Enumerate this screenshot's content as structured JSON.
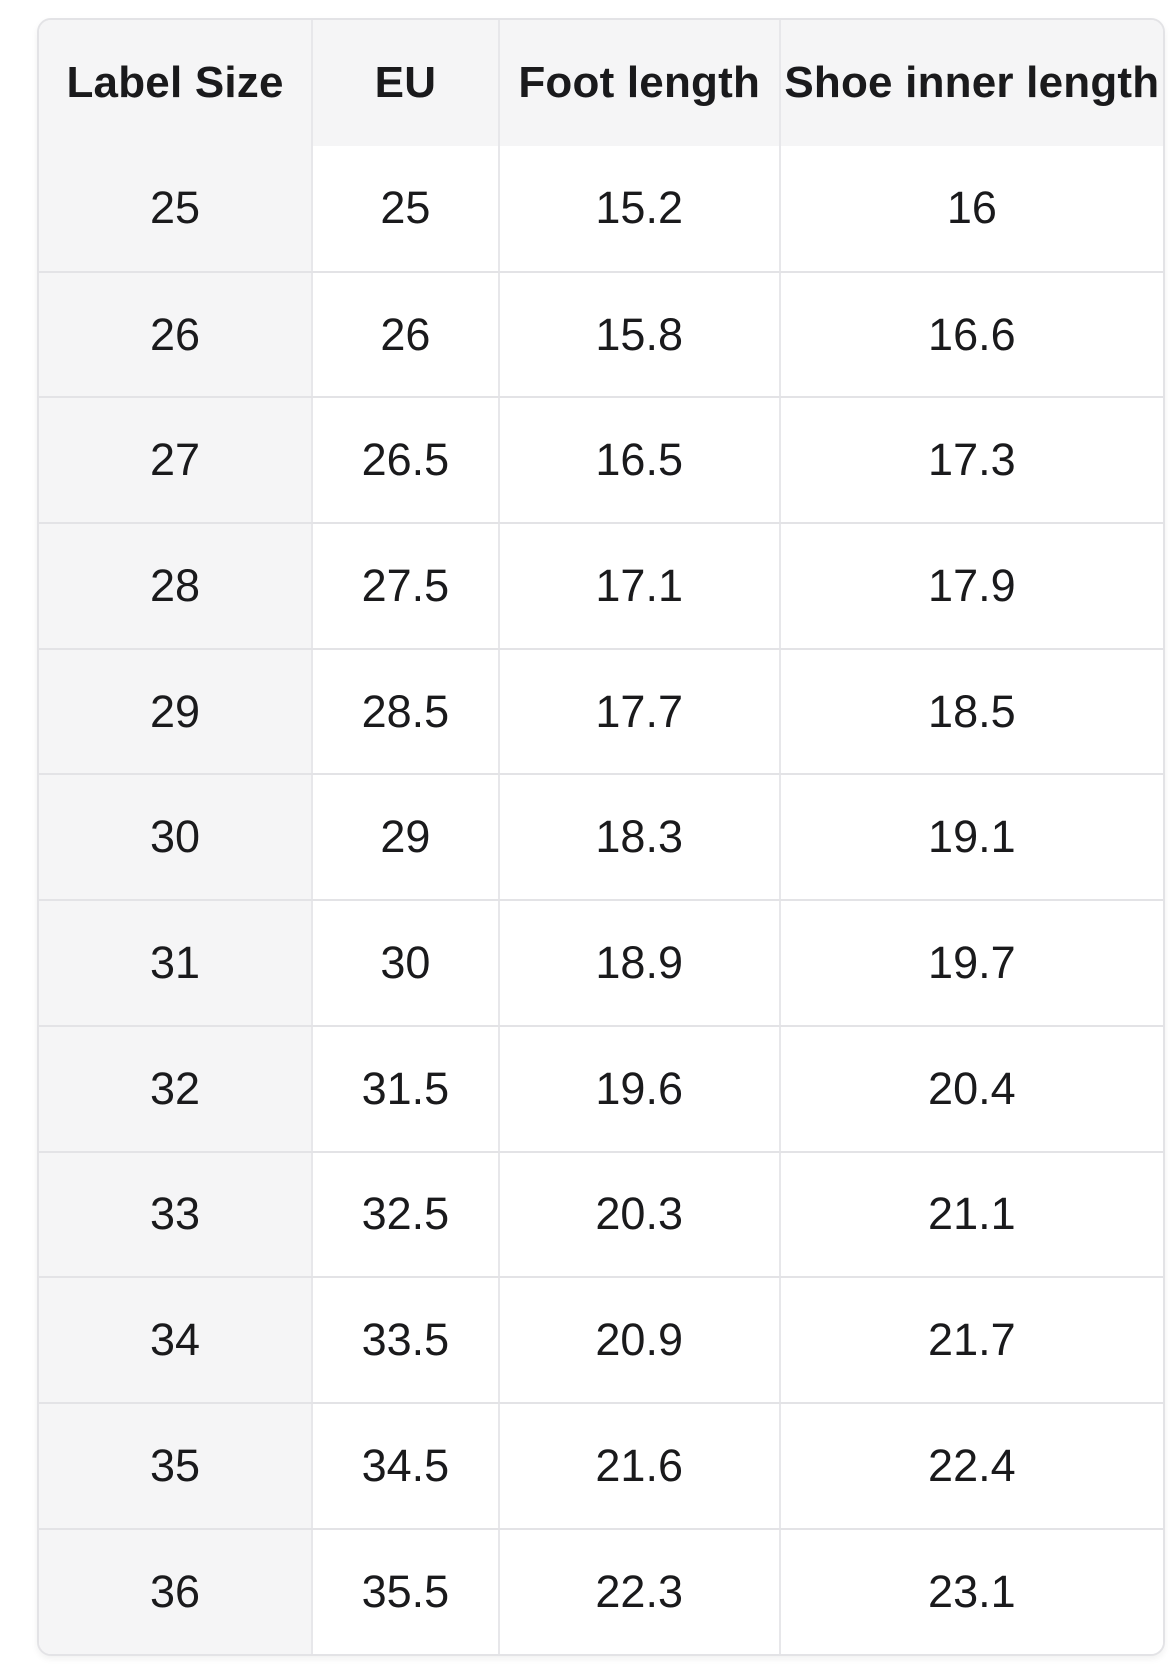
{
  "colors": {
    "page_background": "#ffffff",
    "card_background": "#ffffff",
    "header_background": "#f5f5f6",
    "first_column_background": "#f5f5f6",
    "grid_line": "#e3e3e6",
    "text": "#1a1a1c"
  },
  "chart_data": {
    "type": "table",
    "title": "",
    "columns": [
      "Label Size",
      "EU",
      "Foot length",
      "Shoe inner length"
    ],
    "rows": [
      [
        "25",
        "25",
        "15.2",
        "16"
      ],
      [
        "26",
        "26",
        "15.8",
        "16.6"
      ],
      [
        "27",
        "26.5",
        "16.5",
        "17.3"
      ],
      [
        "28",
        "27.5",
        "17.1",
        "17.9"
      ],
      [
        "29",
        "28.5",
        "17.7",
        "18.5"
      ],
      [
        "30",
        "29",
        "18.3",
        "19.1"
      ],
      [
        "31",
        "30",
        "18.9",
        "19.7"
      ],
      [
        "32",
        "31.5",
        "19.6",
        "20.4"
      ],
      [
        "33",
        "32.5",
        "20.3",
        "21.1"
      ],
      [
        "34",
        "33.5",
        "20.9",
        "21.7"
      ],
      [
        "35",
        "34.5",
        "21.6",
        "22.4"
      ],
      [
        "36",
        "35.5",
        "22.3",
        "23.1"
      ]
    ],
    "layout": {
      "grid": true,
      "header_row_shaded": true,
      "first_column_shaded": true,
      "cell_text_align": "center"
    }
  }
}
